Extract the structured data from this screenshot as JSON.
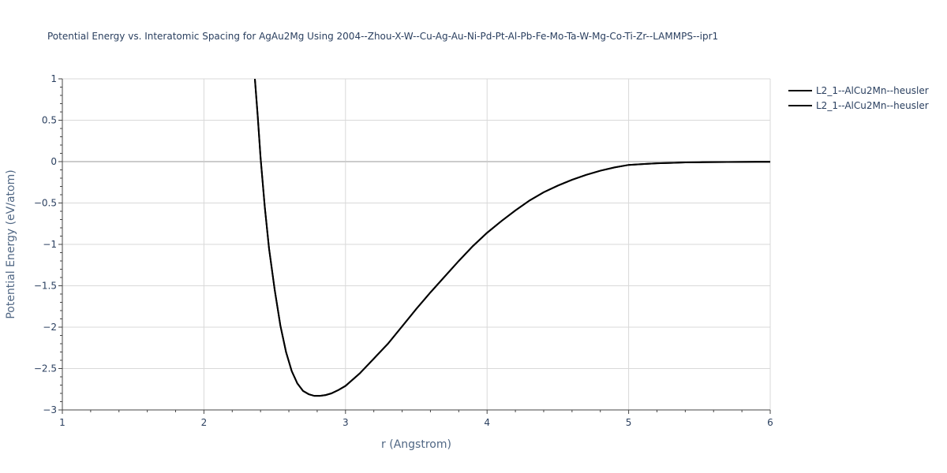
{
  "chart_data": {
    "type": "line",
    "title": "Potential Energy vs. Interatomic Spacing for AgAu2Mg Using 2004--Zhou-X-W--Cu-Ag-Au-Ni-Pd-Pt-Al-Pb-Fe-Mo-Ta-W-Mg-Co-Ti-Zr--LAMMPS--ipr1",
    "xlabel": "r (Angstrom)",
    "ylabel": "Potential Energy (eV/atom)",
    "xlim": [
      1,
      6
    ],
    "ylim": [
      -3,
      1
    ],
    "xticks": [
      1,
      2,
      3,
      4,
      5,
      6
    ],
    "xtick_labels": [
      "1",
      "2",
      "3",
      "4",
      "5",
      "6"
    ],
    "yticks": [
      1,
      0.5,
      0,
      -0.5,
      -1,
      -1.5,
      -2,
      -2.5,
      -3
    ],
    "ytick_labels": [
      "1",
      "0.5",
      "0",
      "−0.5",
      "−1",
      "−1.5",
      "−2",
      "−2.5",
      "−3"
    ],
    "grid": true,
    "legend_position": "top-right",
    "series": [
      {
        "name": "L2_1--AlCu2Mn--heusler",
        "color": "#000000",
        "x": [
          2.36,
          2.38,
          2.4,
          2.43,
          2.46,
          2.5,
          2.54,
          2.58,
          2.62,
          2.66,
          2.7,
          2.74,
          2.78,
          2.82,
          2.86,
          2.9,
          2.95,
          3.0,
          3.1,
          3.2,
          3.3,
          3.4,
          3.5,
          3.6,
          3.7,
          3.8,
          3.9,
          4.0,
          4.1,
          4.2,
          4.3,
          4.4,
          4.5,
          4.6,
          4.7,
          4.8,
          4.9,
          5.0,
          5.1,
          5.2,
          5.3,
          5.4,
          5.5,
          5.6,
          5.7,
          5.8,
          5.9,
          6.0
        ],
        "y": [
          1.0,
          0.55,
          0.05,
          -0.55,
          -1.05,
          -1.55,
          -1.98,
          -2.3,
          -2.53,
          -2.68,
          -2.77,
          -2.81,
          -2.83,
          -2.83,
          -2.82,
          -2.8,
          -2.76,
          -2.71,
          -2.56,
          -2.38,
          -2.2,
          -1.99,
          -1.78,
          -1.58,
          -1.39,
          -1.2,
          -1.02,
          -0.86,
          -0.72,
          -0.59,
          -0.47,
          -0.37,
          -0.29,
          -0.22,
          -0.16,
          -0.11,
          -0.07,
          -0.04,
          -0.03,
          -0.02,
          -0.015,
          -0.01,
          -0.008,
          -0.006,
          -0.005,
          -0.004,
          -0.003,
          -0.002
        ]
      },
      {
        "name": "L2_1--AlCu2Mn--heusler",
        "color": "#000000",
        "x": [
          2.36,
          2.38,
          2.4,
          2.43,
          2.46,
          2.5,
          2.54,
          2.58,
          2.62,
          2.66,
          2.7,
          2.74,
          2.78,
          2.82,
          2.86,
          2.9,
          2.95,
          3.0,
          3.1,
          3.2,
          3.3,
          3.4,
          3.5,
          3.6,
          3.7,
          3.8,
          3.9,
          4.0,
          4.1,
          4.2,
          4.3,
          4.4,
          4.5,
          4.6,
          4.7,
          4.8,
          4.9,
          5.0,
          5.1,
          5.2,
          5.3,
          5.4,
          5.5,
          5.6,
          5.7,
          5.8,
          5.9,
          6.0
        ],
        "y": [
          1.0,
          0.55,
          0.05,
          -0.55,
          -1.05,
          -1.55,
          -1.98,
          -2.3,
          -2.53,
          -2.68,
          -2.77,
          -2.81,
          -2.83,
          -2.83,
          -2.82,
          -2.8,
          -2.76,
          -2.71,
          -2.56,
          -2.38,
          -2.2,
          -1.99,
          -1.78,
          -1.58,
          -1.39,
          -1.2,
          -1.02,
          -0.86,
          -0.72,
          -0.59,
          -0.47,
          -0.37,
          -0.29,
          -0.22,
          -0.16,
          -0.11,
          -0.07,
          -0.04,
          -0.03,
          -0.02,
          -0.015,
          -0.01,
          -0.008,
          -0.006,
          -0.005,
          -0.004,
          -0.003,
          -0.002
        ]
      }
    ]
  }
}
